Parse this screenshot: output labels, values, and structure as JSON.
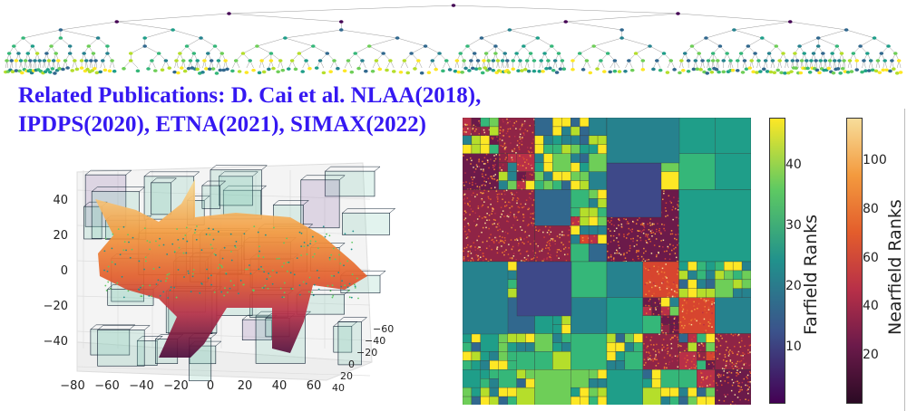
{
  "publications": {
    "line1": "Related Publications: D. Cai et al. NLAA(2018),",
    "line2": "IPDPS(2020), ETNA(2021), SIMAX(2022)",
    "color": "#3518f2"
  },
  "chart_data": [
    {
      "type": "tree",
      "description_colormap": "viridis",
      "levels": 9
    },
    {
      "type": "scatter3d",
      "colormap": "inferno",
      "xticks": [
        "−80",
        "−60",
        "−40",
        "−20",
        "0",
        "20",
        "40",
        "60"
      ],
      "yticks": [
        "40",
        "20",
        "0",
        "−20",
        "−40",
        "−60"
      ],
      "zticks": [
        "40",
        "20",
        "0",
        "−20",
        "−40"
      ],
      "box_colormap": "viridis",
      "grid": true
    },
    {
      "type": "heatmap",
      "colormaps": [
        "viridis",
        "inferno"
      ]
    },
    {
      "type": "colorbar",
      "label": "Farfield Ranks",
      "colormap": "viridis",
      "range": [
        1,
        48
      ],
      "ticks": [
        "10",
        "20",
        "30",
        "40"
      ],
      "tick_values": [
        10,
        20,
        30,
        40
      ]
    },
    {
      "type": "colorbar",
      "label": "Nearfield Ranks",
      "colormap": "inferno",
      "range": [
        1,
        118
      ],
      "ticks": [
        "20",
        "40",
        "60",
        "80",
        "100"
      ],
      "tick_values": [
        20,
        40,
        60,
        80,
        100
      ]
    }
  ]
}
